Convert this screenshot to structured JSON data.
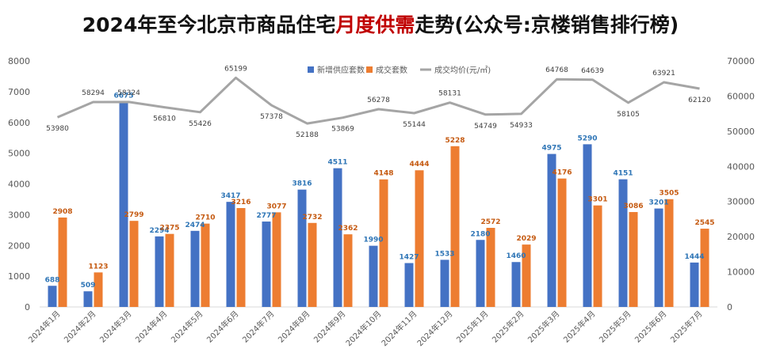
{
  "title": {
    "before": "2024年至今北京市商品住宅",
    "highlight": "月度供需",
    "after": "走势(公众号:京楼销售排行榜)"
  },
  "colors": {
    "supply": "#4472c4",
    "sales": "#ed7d31",
    "price": "#a5a5a5",
    "supply_label": "#2e75b6",
    "sales_label": "#c55a11",
    "price_label": "#404040",
    "title_highlight": "#c00000"
  },
  "chart_data": {
    "type": "bar",
    "categories": [
      "2024年1月",
      "2024年2月",
      "2024年3月",
      "2024年4月",
      "2024年5月",
      "2024年6月",
      "2024年7月",
      "2024年8月",
      "2024年9月",
      "2024年10月",
      "2024年11月",
      "2024年12月",
      "2025年1月",
      "2025年2月",
      "2025年3月",
      "2025年4月",
      "2025年5月",
      "2025年6月",
      "2025年7月"
    ],
    "series": [
      {
        "name": "新增供应套数",
        "type": "bar",
        "axis": "left",
        "values": [
          688,
          509,
          6675,
          2294,
          2474,
          3417,
          2777,
          3816,
          4511,
          1990,
          1427,
          1533,
          2180,
          1460,
          4975,
          5290,
          4151,
          3201,
          1444
        ]
      },
      {
        "name": "成交套数",
        "type": "bar",
        "axis": "left",
        "values": [
          2908,
          1123,
          2799,
          2375,
          2710,
          3216,
          3077,
          2732,
          2362,
          4148,
          4444,
          5228,
          2572,
          2029,
          4176,
          3301,
          3086,
          3505,
          2545
        ]
      },
      {
        "name": "成交均价(元/㎡)",
        "type": "line",
        "axis": "right",
        "values": [
          53980,
          58294,
          58324,
          56810,
          55426,
          65199,
          57378,
          52188,
          53869,
          56278,
          55144,
          58131,
          54749,
          54933,
          64768,
          64639,
          58105,
          63921,
          62120
        ]
      }
    ],
    "y_left": {
      "min": 0,
      "max": 8000,
      "step": 1000,
      "ticks": [
        "0",
        "1000",
        "2000",
        "3000",
        "4000",
        "5000",
        "6000",
        "7000",
        "8000"
      ]
    },
    "y_right": {
      "min": 0,
      "max": 70000,
      "step": 10000,
      "ticks": [
        "0",
        "10000",
        "20000",
        "30000",
        "40000",
        "50000",
        "60000",
        "70000"
      ]
    },
    "legend_position": "top-center",
    "grid": false
  }
}
